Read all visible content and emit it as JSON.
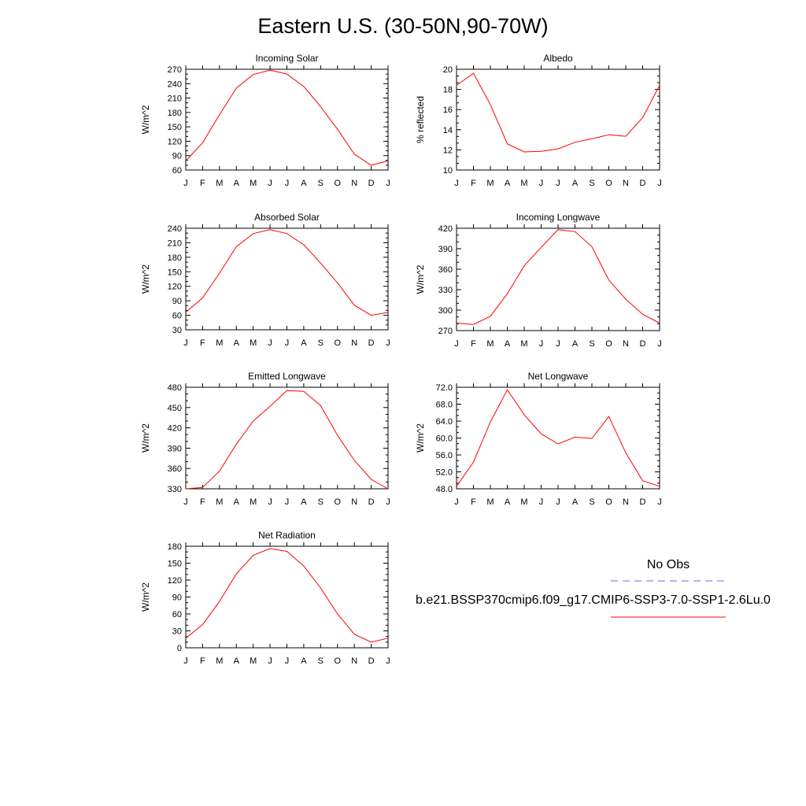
{
  "title": "Eastern U.S. (30-50N,90-70W)",
  "months": [
    "J",
    "F",
    "M",
    "A",
    "M",
    "J",
    "J",
    "A",
    "S",
    "O",
    "N",
    "D",
    "J"
  ],
  "legend": {
    "obs_label": "No Obs",
    "obs_color": "#6a6ae0",
    "model_label": "b.e21.BSSP370cmip6.f09_g17.CMIP6-SSP3-7.0-SSP1-2.6Lu.0",
    "model_color": "#ff0000"
  },
  "chart_data": [
    {
      "type": "line",
      "title": "Incoming Solar",
      "ylabel": "W/m^2",
      "ylim": [
        60,
        270
      ],
      "yticks": [
        "60",
        "90",
        "120",
        "150",
        "180",
        "210",
        "240",
        "270"
      ],
      "values": [
        79,
        117,
        175,
        231,
        259,
        268,
        260,
        234,
        192,
        145,
        93,
        70,
        79
      ]
    },
    {
      "type": "line",
      "title": "Albedo",
      "ylabel": "% reflected",
      "ylim": [
        10,
        20
      ],
      "yticks": [
        "10",
        "12",
        "14",
        "16",
        "18",
        "20"
      ],
      "values": [
        18.4,
        19.6,
        16.5,
        12.6,
        11.8,
        11.85,
        12.1,
        12.75,
        13.1,
        13.5,
        13.35,
        15.2,
        18.4
      ]
    },
    {
      "type": "line",
      "title": "Absorbed Solar",
      "ylabel": "W/m^2",
      "ylim": [
        30,
        240
      ],
      "yticks": [
        "30",
        "60",
        "90",
        "120",
        "150",
        "180",
        "210",
        "240"
      ],
      "values": [
        66,
        96,
        147,
        202,
        229,
        237,
        229,
        206,
        168,
        127,
        81,
        60,
        66
      ]
    },
    {
      "type": "line",
      "title": "Incoming Longwave",
      "ylabel": "W/m^2",
      "ylim": [
        270,
        420
      ],
      "yticks": [
        "270",
        "300",
        "330",
        "360",
        "390",
        "420"
      ],
      "values": [
        281,
        279,
        291,
        324,
        365,
        392,
        418,
        415,
        393,
        344,
        316,
        294,
        281
      ]
    },
    {
      "type": "line",
      "title": "Emitted Longwave",
      "ylabel": "W/m^2",
      "ylim": [
        330,
        480
      ],
      "yticks": [
        "330",
        "360",
        "390",
        "420",
        "450",
        "480"
      ],
      "values": [
        330,
        332,
        356,
        396,
        430,
        452,
        475,
        474,
        453,
        409,
        372,
        344,
        330
      ]
    },
    {
      "type": "line",
      "title": "Net Longwave",
      "ylabel": "W/m^2",
      "ylim": [
        48,
        72
      ],
      "yticks": [
        "48.0",
        "52.0",
        "56.0",
        "60.0",
        "64.0",
        "68.0",
        "72.0"
      ],
      "values": [
        48.6,
        54.3,
        63.8,
        71.4,
        65.5,
        61.0,
        58.6,
        60.2,
        59.9,
        65.1,
        56.5,
        49.9,
        48.6
      ]
    },
    {
      "type": "line",
      "title": "Net Radiation",
      "ylabel": "W/m^2",
      "ylim": [
        0,
        180
      ],
      "yticks": [
        "0",
        "30",
        "60",
        "90",
        "120",
        "150",
        "180"
      ],
      "values": [
        17,
        41,
        82,
        131,
        164,
        176,
        171,
        145,
        106,
        60,
        24,
        10,
        17
      ]
    }
  ]
}
